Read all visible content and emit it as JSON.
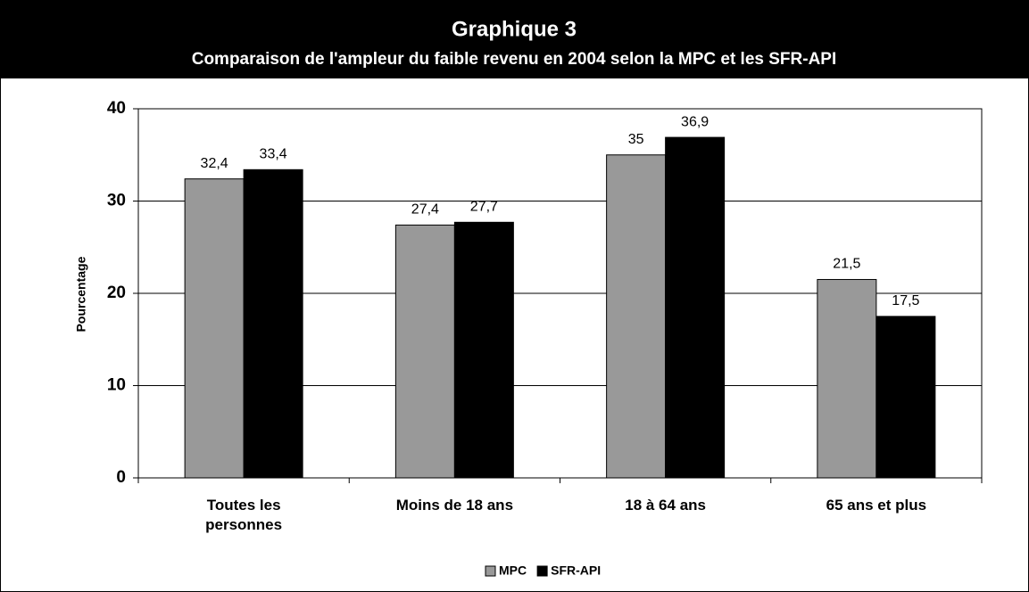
{
  "chart_data": {
    "type": "bar",
    "title": "Graphique 3",
    "subtitle": "Comparaison de l'ampleur du faible revenu en 2004 selon la MPC et les SFR-API",
    "ylabel": "Pourcentage",
    "categories": [
      "Toutes les personnes",
      "Moins de 18 ans",
      "18 à 64 ans",
      "65 ans et plus"
    ],
    "series": [
      {
        "name": "MPC",
        "color": "#999999",
        "values": [
          32.4,
          27.4,
          35,
          21.5
        ],
        "value_labels": [
          "32,4",
          "27,4",
          "35",
          "21,5"
        ]
      },
      {
        "name": "SFR-API",
        "color": "#000000",
        "values": [
          33.4,
          27.7,
          36.9,
          17.5
        ],
        "value_labels": [
          "33,4",
          "27,7",
          "36,9",
          "17,5"
        ]
      }
    ],
    "ylim": [
      0,
      40
    ],
    "yticks": [
      0,
      10,
      20,
      30,
      40
    ],
    "grid": true,
    "legend": "bottom"
  }
}
